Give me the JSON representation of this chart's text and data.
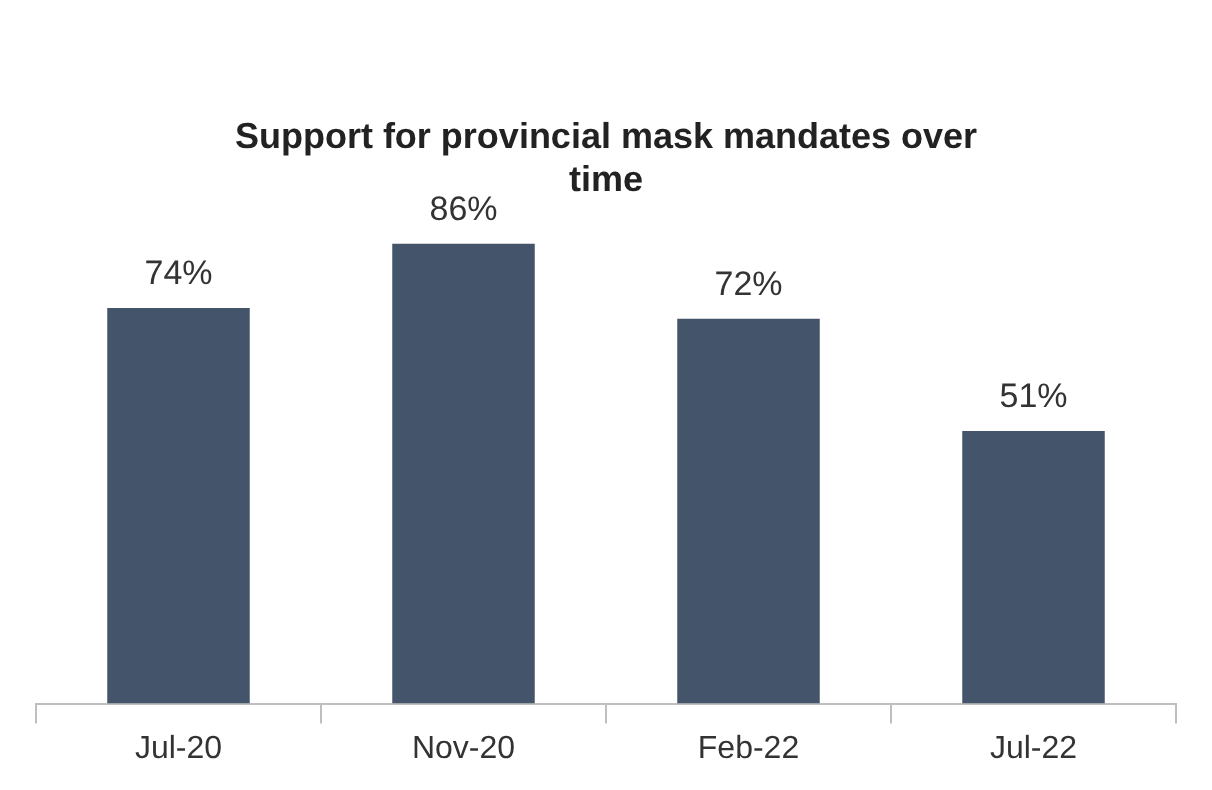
{
  "chart_data": {
    "type": "bar",
    "title": "Support for provincial mask mandates over time",
    "categories": [
      "Jul-20",
      "Nov-20",
      "Feb-22",
      "Jul-22"
    ],
    "values": [
      74,
      86,
      72,
      51
    ],
    "value_labels": [
      "74%",
      "86%",
      "72%",
      "51%"
    ],
    "color": "#44546a"
  }
}
